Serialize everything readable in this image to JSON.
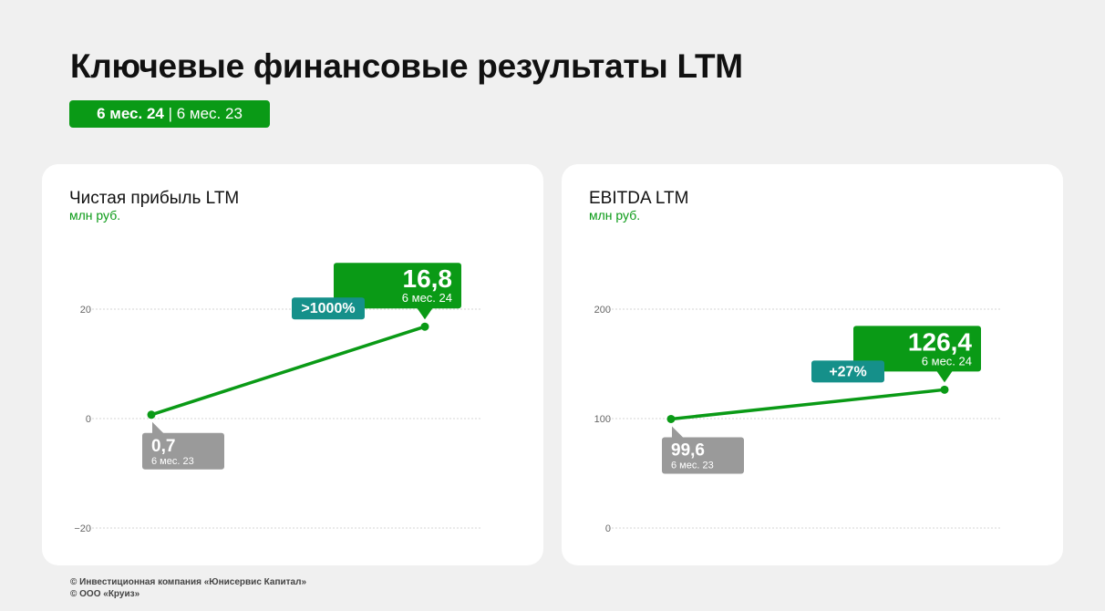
{
  "title": "Ключевые финансовые результаты LTM",
  "period_badge": {
    "current": "6 мес. 24",
    "separator": " | ",
    "previous": "6 мес. 23"
  },
  "colors": {
    "accent": "#0a9a16",
    "change": "#15908a",
    "prev": "#9a9a9a"
  },
  "footer": {
    "line1": "© Инвестиционная компания «Юнисервис Капитал»",
    "line2": "© ООО «Круиз»"
  },
  "chart_data": [
    {
      "type": "line",
      "title": "Чистая прибыль LTM",
      "unit": "млн руб.",
      "y_ticks": [
        20,
        0,
        -20
      ],
      "y_tick_labels": [
        "20",
        "0",
        "−20"
      ],
      "ylim": [
        -20,
        20
      ],
      "grid": true,
      "points": [
        {
          "label": "6 мес. 23",
          "value": 0.7,
          "value_label": "0,7"
        },
        {
          "label": "6 мес. 24",
          "value": 16.8,
          "value_label": "16,8"
        }
      ],
      "change_label": ">1000%"
    },
    {
      "type": "line",
      "title": "EBITDA LTM",
      "unit": "млн руб.",
      "y_ticks": [
        200,
        100,
        0
      ],
      "y_tick_labels": [
        "200",
        "100",
        "0"
      ],
      "ylim": [
        0,
        200
      ],
      "grid": true,
      "points": [
        {
          "label": "6 мес. 23",
          "value": 99.6,
          "value_label": "99,6"
        },
        {
          "label": "6 мес. 24",
          "value": 126.4,
          "value_label": "126,4"
        }
      ],
      "change_label": "+27%"
    }
  ]
}
